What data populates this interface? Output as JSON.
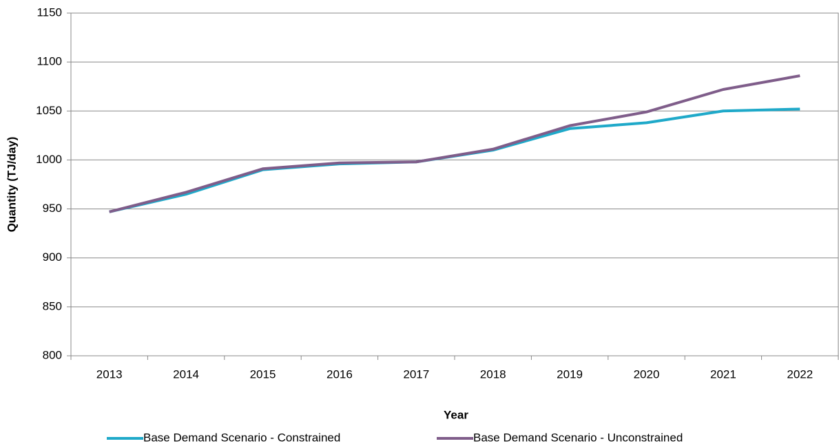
{
  "chart_data": {
    "type": "line",
    "x_label": "Year",
    "y_label": "Quantity (TJ/day)",
    "categories": [
      "2013",
      "2014",
      "2015",
      "2016",
      "2017",
      "2018",
      "2019",
      "2020",
      "2021",
      "2022"
    ],
    "series": [
      {
        "name": "Base Demand Scenario - Constrained",
        "color": "#1fa9c9",
        "values": [
          947,
          965,
          990,
          996,
          998,
          1010,
          1032,
          1038,
          1050,
          1052
        ]
      },
      {
        "name": "Base Demand Scenario - Unconstrained",
        "color": "#7f5d8a",
        "values": [
          947,
          967,
          991,
          997,
          998,
          1011,
          1035,
          1049,
          1072,
          1086
        ]
      }
    ],
    "ylim": [
      800,
      1150
    ],
    "yticks": [
      800,
      850,
      900,
      950,
      1000,
      1050,
      1100,
      1150
    ],
    "grid": true,
    "legend": "bottom"
  }
}
